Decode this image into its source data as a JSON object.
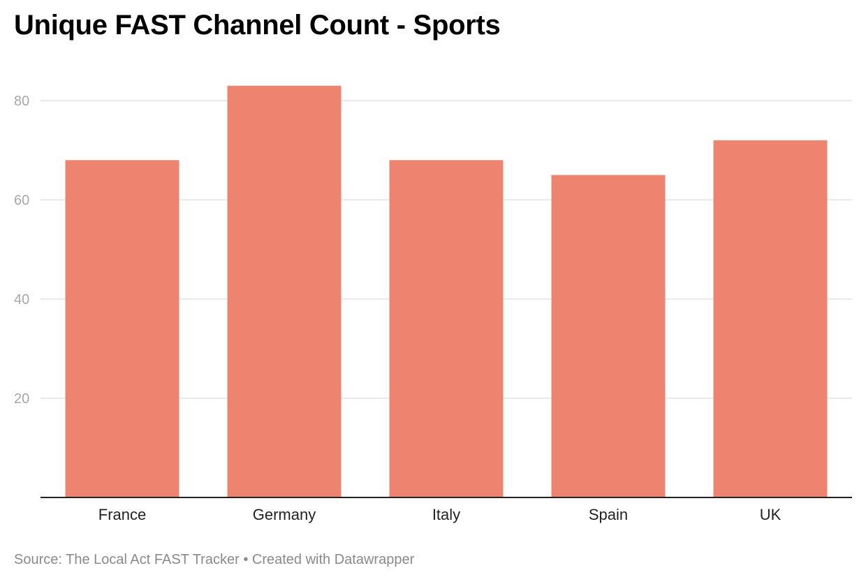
{
  "chart_data": {
    "type": "bar",
    "title": "Unique FAST Channel Count - Sports",
    "categories": [
      "France",
      "Germany",
      "Italy",
      "Spain",
      "UK"
    ],
    "values": [
      68,
      83,
      68,
      65,
      72
    ],
    "xlabel": "",
    "ylabel": "",
    "ylim": [
      0,
      85
    ],
    "yticks": [
      20,
      40,
      60,
      80
    ],
    "grid": true,
    "legend": "none",
    "colors": {
      "bar": "#ee8370",
      "grid": "#e2e2e2",
      "tick_label": "#a8a8a8",
      "axis": "#222222"
    }
  },
  "footer": {
    "source": "Source: The Local Act FAST Tracker",
    "separator": "•",
    "credit": "Created with Datawrapper"
  }
}
